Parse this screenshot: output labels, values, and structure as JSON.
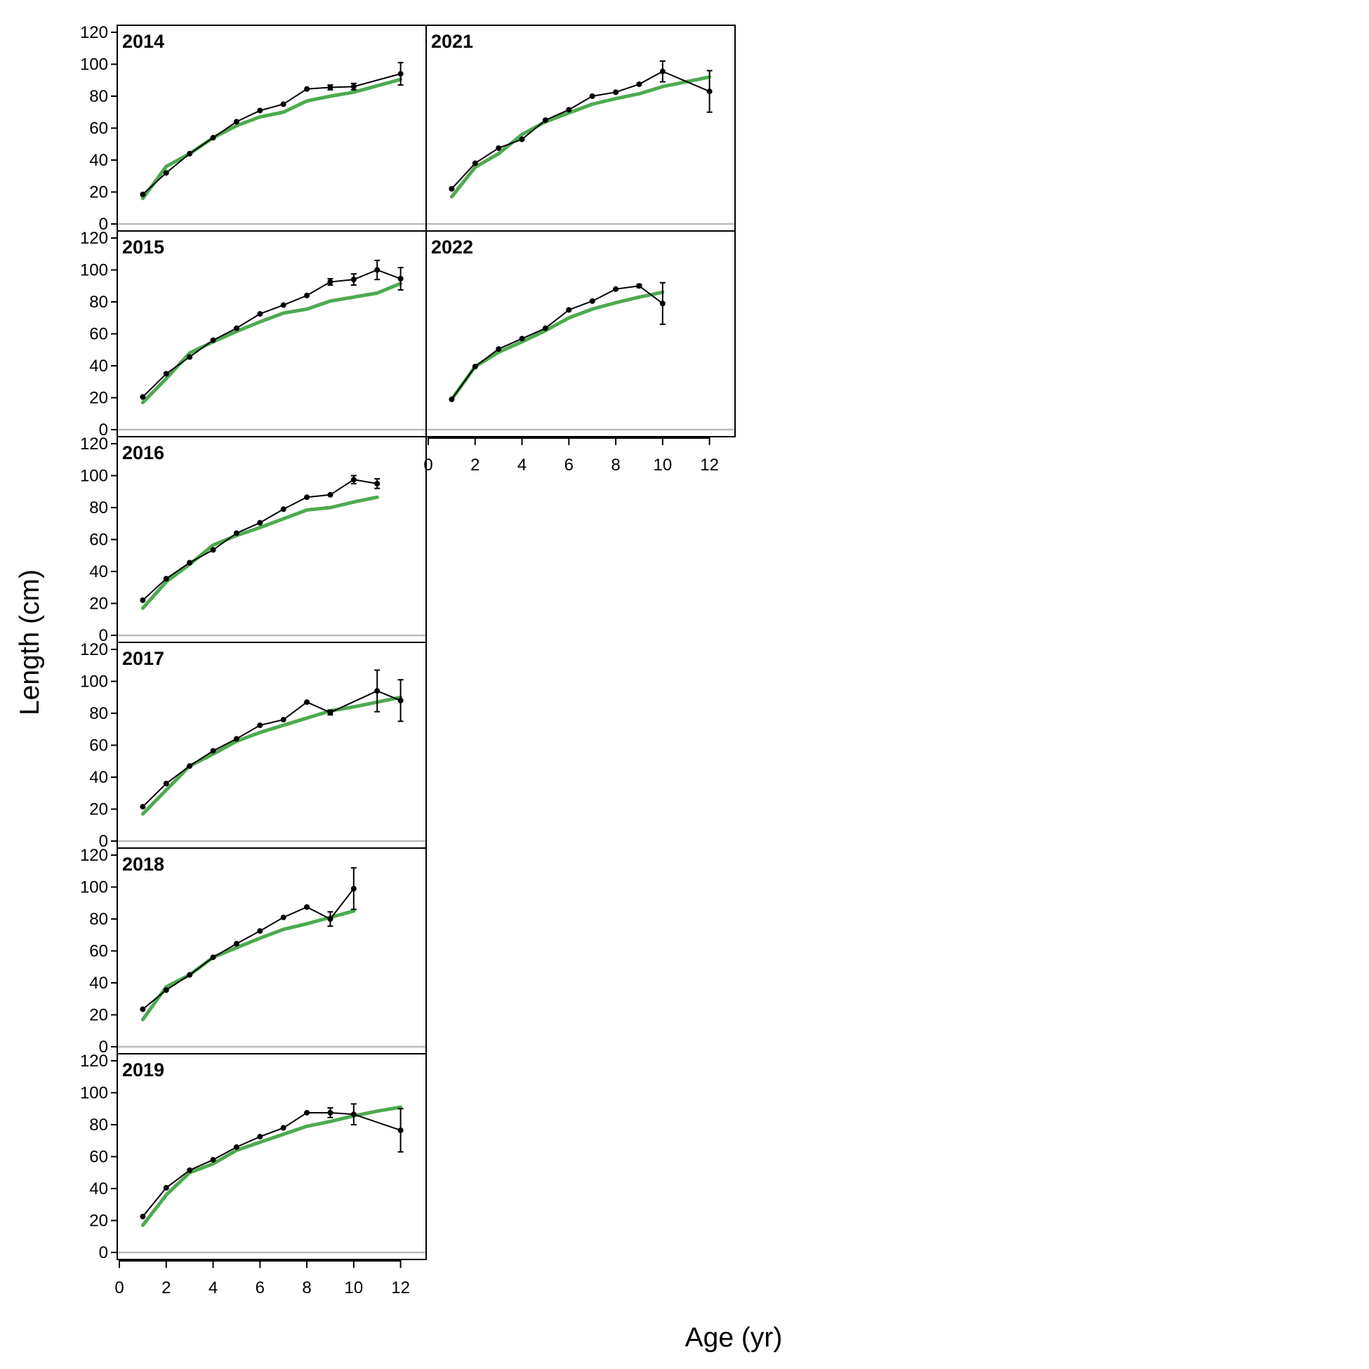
{
  "chart_data": {
    "type": "line",
    "xlabel": "Age (yr)",
    "ylabel": "Length (cm)",
    "xlim": [
      0,
      13
    ],
    "ylim": [
      0,
      120
    ],
    "x_ticks": [
      0,
      2,
      4,
      6,
      8,
      10,
      12
    ],
    "y_ticks": [
      0,
      20,
      40,
      60,
      80,
      100,
      120
    ],
    "colors": {
      "observed": "#000000",
      "expected": "#4daa50",
      "zero_line": "#bbbbbb"
    },
    "panels": [
      {
        "year": "2014",
        "observed": {
          "x": [
            1,
            2,
            3,
            4,
            5,
            6,
            7,
            8,
            9,
            10,
            12
          ],
          "y": [
            18.5,
            32,
            44,
            54,
            64,
            71,
            75,
            84.5,
            85.5,
            86,
            94
          ],
          "err": [
            0,
            0,
            0,
            0,
            0,
            0,
            0,
            0,
            1.5,
            2,
            7
          ]
        },
        "expected": {
          "x": [
            1,
            2,
            3,
            4,
            5,
            6,
            7,
            8,
            9,
            10,
            11,
            12
          ],
          "y": [
            16,
            36,
            44,
            54,
            61.5,
            67,
            70,
            77,
            80,
            82.5,
            86.5,
            90.5
          ]
        }
      },
      {
        "year": "2015",
        "observed": {
          "x": [
            1,
            2,
            3,
            4,
            5,
            6,
            7,
            8,
            9,
            10,
            11,
            12
          ],
          "y": [
            20.5,
            35,
            45.5,
            56,
            63.5,
            72.5,
            78,
            84,
            92.5,
            94,
            100,
            94.5
          ],
          "err": [
            0,
            0,
            0,
            0,
            0,
            0,
            0,
            0,
            2,
            3.5,
            6,
            7
          ]
        },
        "expected": {
          "x": [
            1,
            2,
            3,
            4,
            5,
            6,
            7,
            8,
            9,
            10,
            11,
            12
          ],
          "y": [
            17,
            32,
            48,
            55,
            61.5,
            67.5,
            73,
            75.5,
            80.5,
            83,
            85.5,
            91.5
          ]
        }
      },
      {
        "year": "2016",
        "observed": {
          "x": [
            1,
            2,
            3,
            4,
            5,
            6,
            7,
            8,
            9,
            10,
            11
          ],
          "y": [
            22,
            35.5,
            45.5,
            53.5,
            64,
            70.5,
            79,
            86.5,
            88,
            97.5,
            95
          ],
          "err": [
            0,
            0,
            0,
            0,
            0,
            0,
            0,
            0,
            0,
            2.5,
            3
          ]
        },
        "expected": {
          "x": [
            1,
            2,
            3,
            4,
            5,
            6,
            7,
            8,
            9,
            10,
            11
          ],
          "y": [
            17,
            33.5,
            44.5,
            56.5,
            62.5,
            67.5,
            73,
            78.5,
            80,
            83.5,
            86.5
          ]
        }
      },
      {
        "year": "2017",
        "observed": {
          "x": [
            1,
            2,
            3,
            4,
            5,
            6,
            7,
            8,
            9,
            11,
            12
          ],
          "y": [
            21.5,
            36,
            47,
            56.5,
            64,
            72.5,
            76,
            87,
            80.5,
            94,
            88
          ],
          "err": [
            0,
            0,
            0,
            0,
            0,
            0,
            0,
            0,
            1.5,
            13,
            13
          ]
        },
        "expected": {
          "x": [
            1,
            2,
            3,
            4,
            5,
            6,
            7,
            8,
            9,
            10,
            11,
            12
          ],
          "y": [
            17,
            32,
            47,
            54.5,
            62.5,
            68,
            72.5,
            77,
            81.5,
            84,
            87,
            90
          ]
        }
      },
      {
        "year": "2018",
        "observed": {
          "x": [
            1,
            2,
            3,
            4,
            5,
            6,
            7,
            8,
            9,
            10
          ],
          "y": [
            23.5,
            35.5,
            45,
            56,
            64.5,
            72.5,
            81,
            87.5,
            80,
            99
          ],
          "err": [
            0,
            0,
            0,
            0,
            0,
            0,
            0,
            0,
            4.5,
            13
          ]
        },
        "expected": {
          "x": [
            1,
            2,
            3,
            4,
            5,
            6,
            7,
            8,
            9,
            10
          ],
          "y": [
            17,
            37.5,
            45,
            56,
            62,
            68,
            73.5,
            77,
            81,
            85
          ]
        }
      },
      {
        "year": "2019",
        "observed": {
          "x": [
            1,
            2,
            3,
            4,
            5,
            6,
            7,
            8,
            9,
            10,
            12
          ],
          "y": [
            22.5,
            40.5,
            51.5,
            58,
            66,
            72.5,
            78,
            87.5,
            87.5,
            86.5,
            76.5
          ],
          "err": [
            0,
            0,
            0,
            0,
            0,
            0,
            0,
            0,
            3,
            6.5,
            13.5
          ]
        },
        "expected": {
          "x": [
            1,
            2,
            3,
            4,
            5,
            6,
            7,
            8,
            9,
            10,
            11,
            12
          ],
          "y": [
            17,
            36,
            50,
            55.5,
            64,
            69,
            74,
            79,
            82,
            85.5,
            88.5,
            91
          ]
        }
      },
      {
        "year": "2021",
        "observed": {
          "x": [
            1,
            2,
            3,
            4,
            5,
            6,
            7,
            8,
            9,
            10,
            12
          ],
          "y": [
            22,
            38,
            47.5,
            53,
            65,
            71.5,
            80,
            82.5,
            87.5,
            95.5,
            83
          ],
          "err": [
            0,
            0,
            0,
            0,
            0,
            0,
            0,
            0,
            0,
            6.5,
            13
          ]
        },
        "expected": {
          "x": [
            1,
            2,
            3,
            4,
            5,
            6,
            7,
            8,
            9,
            10,
            11,
            12
          ],
          "y": [
            17,
            35.5,
            44,
            56,
            64,
            69.5,
            75,
            78.5,
            81.5,
            86,
            89,
            92
          ]
        }
      },
      {
        "year": "2022",
        "observed": {
          "x": [
            1,
            2,
            3,
            4,
            5,
            6,
            7,
            8,
            9,
            10
          ],
          "y": [
            19,
            39.5,
            50.5,
            57,
            63.5,
            75,
            80.5,
            88,
            90,
            79
          ],
          "err": [
            0,
            0,
            0,
            0,
            0,
            0,
            0,
            0,
            1,
            13
          ]
        },
        "expected": {
          "x": [
            1,
            2,
            3,
            4,
            5,
            6,
            7,
            8,
            9,
            10
          ],
          "y": [
            19,
            39.5,
            48.5,
            55,
            62,
            70,
            75.5,
            79.5,
            83,
            86
          ]
        }
      }
    ]
  }
}
